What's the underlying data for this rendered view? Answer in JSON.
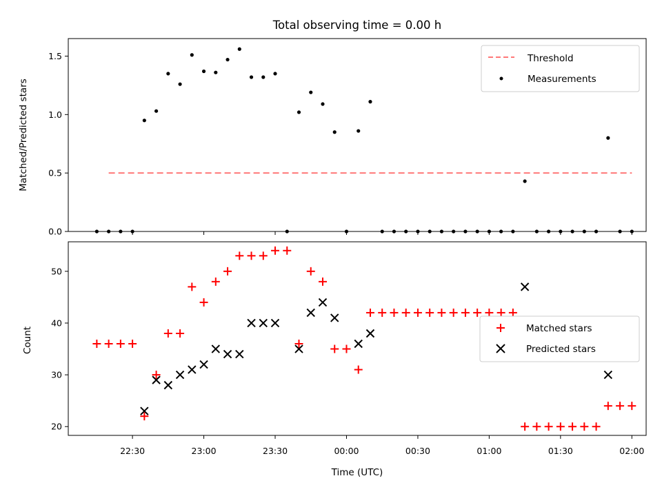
{
  "chart_data": [
    {
      "type": "scatter",
      "title": "Total observing time = 0.00 h",
      "xlabel": "",
      "ylabel": "Matched/Predicted stars",
      "x_axis": "time",
      "xlim": [
        "22:03",
        "02:06"
      ],
      "ylim": [
        0,
        1.65
      ],
      "yticks": [
        "0.0",
        "0.5",
        "1.0",
        "1.5"
      ],
      "threshold": {
        "name": "Threshold",
        "value": 0.5,
        "x": [
          "22:20",
          "02:00"
        ],
        "color": "#ff7777"
      },
      "series": [
        {
          "name": "Measurements",
          "color": "#000000",
          "x": [
            "22:15",
            "22:20",
            "22:25",
            "22:30",
            "22:35",
            "22:40",
            "22:45",
            "22:50",
            "22:55",
            "23:00",
            "23:05",
            "23:10",
            "23:15",
            "23:20",
            "23:25",
            "23:30",
            "23:35",
            "23:40",
            "23:45",
            "23:50",
            "23:55",
            "00:00",
            "00:05",
            "00:10",
            "00:15",
            "00:20",
            "00:25",
            "00:30",
            "00:35",
            "00:40",
            "00:45",
            "00:50",
            "00:55",
            "01:00",
            "01:05",
            "01:10",
            "01:15",
            "01:20",
            "01:25",
            "01:30",
            "01:35",
            "01:40",
            "01:45",
            "01:50",
            "01:55",
            "02:00"
          ],
          "values": [
            0,
            0,
            0,
            0,
            0.95,
            1.03,
            1.35,
            1.26,
            1.51,
            1.37,
            1.36,
            1.47,
            1.56,
            1.32,
            1.32,
            1.35,
            0,
            1.02,
            1.19,
            1.09,
            0.85,
            0,
            0.86,
            1.11,
            0,
            0,
            0,
            0,
            0,
            0,
            0,
            0,
            0,
            0,
            0,
            0,
            0.43,
            0,
            0,
            0,
            0,
            0,
            0,
            0.8,
            0,
            0
          ]
        }
      ],
      "legend_position": "upper right",
      "grid": false
    },
    {
      "type": "scatter",
      "xlabel": "Time (UTC)",
      "ylabel": "Count",
      "x_axis": "time",
      "xlim": [
        "22:03",
        "02:06"
      ],
      "ylim": [
        18.3,
        55.7
      ],
      "yticks": [
        "20",
        "30",
        "40",
        "50"
      ],
      "xticks": [
        "22:30",
        "23:00",
        "23:30",
        "00:00",
        "00:30",
        "01:00",
        "01:30",
        "02:00"
      ],
      "series": [
        {
          "name": "Matched stars",
          "marker": "plus",
          "color": "#ff0000",
          "x": [
            "22:15",
            "22:20",
            "22:25",
            "22:30",
            "22:35",
            "22:40",
            "22:45",
            "22:50",
            "22:55",
            "23:00",
            "23:05",
            "23:10",
            "23:15",
            "23:20",
            "23:25",
            "23:30",
            "23:35",
            "23:40",
            "23:45",
            "23:50",
            "23:55",
            "00:00",
            "00:05",
            "00:10",
            "00:15",
            "00:20",
            "00:25",
            "00:30",
            "00:35",
            "00:40",
            "00:45",
            "00:50",
            "00:55",
            "01:00",
            "01:05",
            "01:10",
            "01:15",
            "01:20",
            "01:25",
            "01:30",
            "01:35",
            "01:40",
            "01:45",
            "01:50",
            "01:55",
            "02:00"
          ],
          "values": [
            36,
            36,
            36,
            36,
            22,
            30,
            38,
            38,
            47,
            44,
            48,
            50,
            53,
            53,
            53,
            54,
            54,
            36,
            50,
            48,
            35,
            35,
            31,
            42,
            42,
            42,
            42,
            42,
            42,
            42,
            42,
            42,
            42,
            42,
            42,
            42,
            20,
            20,
            20,
            20,
            20,
            20,
            20,
            24,
            24,
            24
          ]
        },
        {
          "name": "Predicted stars",
          "marker": "x",
          "color": "#000000",
          "x": [
            "22:35",
            "22:40",
            "22:45",
            "22:50",
            "22:55",
            "23:00",
            "23:05",
            "23:10",
            "23:15",
            "23:20",
            "23:25",
            "23:30",
            "23:40",
            "23:45",
            "23:50",
            "23:55",
            "00:05",
            "00:10",
            "01:15",
            "01:50"
          ],
          "values": [
            23,
            29,
            28,
            30,
            31,
            32,
            35,
            34,
            34,
            40,
            40,
            40,
            35,
            42,
            44,
            41,
            36,
            38,
            47,
            30
          ]
        }
      ],
      "legend_position": "center right",
      "grid": false
    }
  ]
}
